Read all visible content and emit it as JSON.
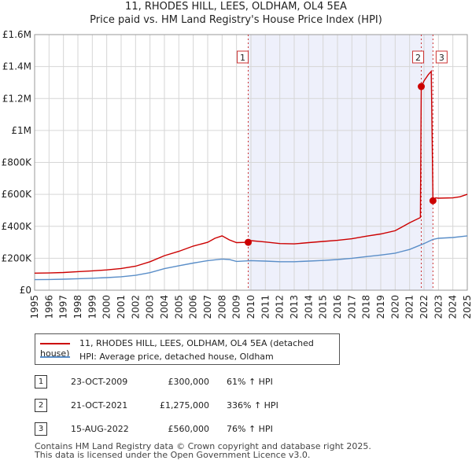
{
  "title_line1": "11, RHODES HILL, LEES, OLDHAM, OL4 5EA",
  "title_line2": "Price paid vs. HM Land Registry's House Price Index (HPI)",
  "chart_data": {
    "type": "line",
    "xlim": [
      1995,
      2025
    ],
    "ylim": [
      0,
      1600000
    ],
    "x_ticks": [
      "1995",
      "1996",
      "1997",
      "1998",
      "1999",
      "2000",
      "2001",
      "2002",
      "2003",
      "2004",
      "2005",
      "2006",
      "2007",
      "2008",
      "2009",
      "2010",
      "2011",
      "2012",
      "2013",
      "2014",
      "2015",
      "2016",
      "2017",
      "2018",
      "2019",
      "2020",
      "2021",
      "2022",
      "2023",
      "2024",
      "2025"
    ],
    "y_ticks": [
      {
        "value": 0,
        "label": "£0"
      },
      {
        "value": 200000,
        "label": "£200K"
      },
      {
        "value": 400000,
        "label": "£400K"
      },
      {
        "value": 600000,
        "label": "£600K"
      },
      {
        "value": 800000,
        "label": "£800K"
      },
      {
        "value": 1000000,
        "label": "£1M"
      },
      {
        "value": 1200000,
        "label": "£1.2M"
      },
      {
        "value": 1400000,
        "label": "£1.4M"
      },
      {
        "value": 1600000,
        "label": "£1.6M"
      }
    ],
    "grid": true,
    "series": [
      {
        "name": "11, RHODES HILL, LEES, OLDHAM, OL4 5EA (detached house)",
        "color": "#cc0000",
        "x": [
          1995,
          1996,
          1997,
          1998,
          1999,
          2000,
          2001,
          2002,
          2003,
          2004,
          2005,
          2006,
          2007,
          2007.5,
          2008,
          2008.5,
          2009,
          2009.81,
          2010,
          2011,
          2012,
          2013,
          2014,
          2015,
          2016,
          2017,
          2018,
          2019,
          2020,
          2021,
          2021.75,
          2021.81,
          2022.0,
          2022.3,
          2022.5,
          2022.62,
          2022.8,
          2023,
          2024,
          2024.5,
          2025
        ],
        "values": [
          107000,
          108000,
          111000,
          116000,
          121000,
          127000,
          136000,
          150000,
          178000,
          216000,
          243000,
          276000,
          300000,
          325000,
          340000,
          315000,
          298000,
          300000,
          310000,
          302000,
          292000,
          290000,
          298000,
          305000,
          312000,
          322000,
          338000,
          352000,
          372000,
          422000,
          455000,
          1275000,
          1310000,
          1350000,
          1370000,
          560000,
          578000,
          576000,
          578000,
          585000,
          600000
        ]
      },
      {
        "name": "HPI: Average price, detached house, Oldham",
        "color": "#5a8ec8",
        "x": [
          1995,
          1996,
          1997,
          1998,
          1999,
          2000,
          2001,
          2002,
          2003,
          2004,
          2005,
          2006,
          2007,
          2008,
          2008.5,
          2009,
          2010,
          2011,
          2012,
          2013,
          2014,
          2015,
          2016,
          2017,
          2018,
          2019,
          2020,
          2021,
          2022,
          2022.62,
          2023,
          2024,
          2025
        ],
        "values": [
          66000,
          67000,
          69000,
          72000,
          75000,
          79000,
          84000,
          93000,
          110000,
          135000,
          153000,
          170000,
          185000,
          195000,
          192000,
          180000,
          185000,
          182000,
          178000,
          178000,
          182000,
          186000,
          192000,
          200000,
          210000,
          220000,
          232000,
          255000,
          292000,
          318000,
          325000,
          330000,
          340000
        ]
      }
    ],
    "sales": [
      {
        "id": "1",
        "x": 2009.81,
        "value": 300000
      },
      {
        "id": "2",
        "x": 2021.81,
        "value": 1275000
      },
      {
        "id": "3",
        "x": 2022.62,
        "value": 560000
      }
    ],
    "shaded_band": [
      2009.81,
      2022.62
    ]
  },
  "legend": {
    "property_label": "11, RHODES HILL, LEES, OLDHAM, OL4 5EA (detached house)",
    "hpi_label": "HPI: Average price, detached house, Oldham",
    "property_color": "#cc0000",
    "hpi_color": "#5a8ec8"
  },
  "sales_table": [
    {
      "num": "1",
      "date": "23-OCT-2009",
      "price": "£300,000",
      "hpi": "61% ↑ HPI"
    },
    {
      "num": "2",
      "date": "21-OCT-2021",
      "price": "£1,275,000",
      "hpi": "336% ↑ HPI"
    },
    {
      "num": "3",
      "date": "15-AUG-2022",
      "price": "£560,000",
      "hpi": "76% ↑ HPI"
    }
  ],
  "footer_line1": "Contains HM Land Registry data © Crown copyright and database right 2025.",
  "footer_line2": "This data is licensed under the Open Government Licence v3.0."
}
